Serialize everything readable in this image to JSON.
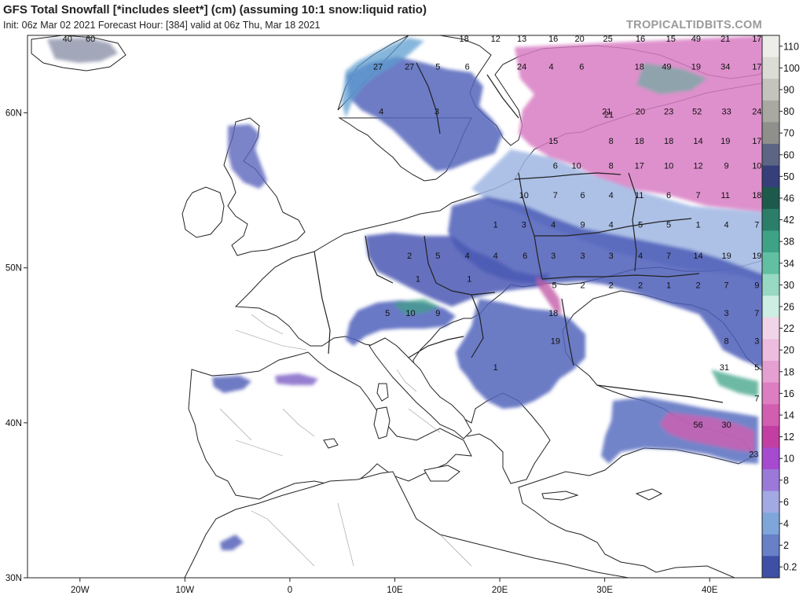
{
  "header": {
    "title": "GFS Total Snowfall [*includes sleet*] (cm) (assuming 10:1 snow:liquid ratio)",
    "subtitle": "Init: 06z Mar 02 2021   Forecast Hour: [384]   valid at 06z Thu, Mar 18 2021",
    "brand": "TROPICALTIDBITS.COM"
  },
  "axes": {
    "lon_ticks": [
      {
        "label": "20W",
        "lon": -20
      },
      {
        "label": "10W",
        "lon": -10
      },
      {
        "label": "0",
        "lon": 0
      },
      {
        "label": "10E",
        "lon": 10
      },
      {
        "label": "20E",
        "lon": 20
      },
      {
        "label": "30E",
        "lon": 30
      },
      {
        "label": "40E",
        "lon": 40
      }
    ],
    "lat_ticks": [
      {
        "label": "60N",
        "lat": 60
      },
      {
        "label": "50N",
        "lat": 50
      },
      {
        "label": "40N",
        "lat": 40
      },
      {
        "label": "30N",
        "lat": 30
      }
    ],
    "lon_range": [
      -25,
      45
    ],
    "lat_range": [
      30,
      65
    ]
  },
  "colorbar": {
    "units": "cm",
    "levels": [
      {
        "label": "110",
        "color": "#ededea"
      },
      {
        "label": "100",
        "color": "#dcdcd6"
      },
      {
        "label": "90",
        "color": "#c4c4bd"
      },
      {
        "label": "80",
        "color": "#a9a9a2"
      },
      {
        "label": "70",
        "color": "#8f8f8c"
      },
      {
        "label": "60",
        "color": "#5c6584"
      },
      {
        "label": "50",
        "color": "#353f7a"
      },
      {
        "label": "46",
        "color": "#1d5a4c"
      },
      {
        "label": "42",
        "color": "#2b7f6a"
      },
      {
        "label": "38",
        "color": "#3ea286"
      },
      {
        "label": "34",
        "color": "#61c0a2"
      },
      {
        "label": "30",
        "color": "#97d9c2"
      },
      {
        "label": "26",
        "color": "#cdeee2"
      },
      {
        "label": "22",
        "color": "#f2d4e9"
      },
      {
        "label": "20",
        "color": "#edbcdf"
      },
      {
        "label": "18",
        "color": "#e59fd1"
      },
      {
        "label": "16",
        "color": "#dc7ec1"
      },
      {
        "label": "14",
        "color": "#d15eb0"
      },
      {
        "label": "12",
        "color": "#c23ea2"
      },
      {
        "label": "10",
        "color": "#a64bd0"
      },
      {
        "label": "8",
        "color": "#9b79d8"
      },
      {
        "label": "6",
        "color": "#a3a9e3"
      },
      {
        "label": "4",
        "color": "#7fa6db"
      },
      {
        "label": "2",
        "color": "#6780c8"
      },
      {
        "label": "0.2",
        "color": "#3f4fa6"
      }
    ]
  },
  "map_labels": [
    {
      "t": "40",
      "lon": -21.2,
      "lat": 64.8
    },
    {
      "t": "60",
      "lon": -19,
      "lat": 64.8
    },
    {
      "t": "18",
      "lon": 16.6,
      "lat": 64.8
    },
    {
      "t": "12",
      "lon": 19.6,
      "lat": 64.8
    },
    {
      "t": "13",
      "lon": 22.1,
      "lat": 64.8
    },
    {
      "t": "16",
      "lon": 25.1,
      "lat": 64.8
    },
    {
      "t": "20",
      "lon": 27.6,
      "lat": 64.8
    },
    {
      "t": "25",
      "lon": 30.3,
      "lat": 64.8
    },
    {
      "t": "16",
      "lon": 33.4,
      "lat": 64.8
    },
    {
      "t": "15",
      "lon": 36.3,
      "lat": 64.8
    },
    {
      "t": "49",
      "lon": 38.7,
      "lat": 64.8
    },
    {
      "t": "21",
      "lon": 41.5,
      "lat": 64.8
    },
    {
      "t": "17",
      "lon": 44.5,
      "lat": 64.8
    },
    {
      "t": "27",
      "lon": 8.4,
      "lat": 63.0
    },
    {
      "t": "27",
      "lon": 11.4,
      "lat": 63.0
    },
    {
      "t": "5",
      "lon": 14.1,
      "lat": 63.0
    },
    {
      "t": "6",
      "lon": 16.9,
      "lat": 63.0
    },
    {
      "t": "24",
      "lon": 22.1,
      "lat": 63.0
    },
    {
      "t": "4",
      "lon": 24.9,
      "lat": 63.0
    },
    {
      "t": "6",
      "lon": 27.8,
      "lat": 63.0
    },
    {
      "t": "18",
      "lon": 33.3,
      "lat": 63.0
    },
    {
      "t": "49",
      "lon": 35.9,
      "lat": 63.0
    },
    {
      "t": "19",
      "lon": 38.7,
      "lat": 63.0
    },
    {
      "t": "34",
      "lon": 41.5,
      "lat": 63.0
    },
    {
      "t": "17",
      "lon": 44.5,
      "lat": 63.0
    },
    {
      "t": "4",
      "lon": 8.7,
      "lat": 60.1
    },
    {
      "t": "3",
      "lon": 14,
      "lat": 60.1
    },
    {
      "t": "21",
      "lon": 30.2,
      "lat": 60.1
    },
    {
      "t": "21",
      "lon": 30.4,
      "lat": 59.9
    },
    {
      "t": "20",
      "lon": 33.4,
      "lat": 60.1
    },
    {
      "t": "23",
      "lon": 36.1,
      "lat": 60.1
    },
    {
      "t": "52",
      "lon": 38.8,
      "lat": 60.1
    },
    {
      "t": "33",
      "lon": 41.6,
      "lat": 60.1
    },
    {
      "t": "24",
      "lon": 44.5,
      "lat": 60.1
    },
    {
      "t": "15",
      "lon": 25.1,
      "lat": 58.2
    },
    {
      "t": "8",
      "lon": 30.6,
      "lat": 58.2
    },
    {
      "t": "18",
      "lon": 33.3,
      "lat": 58.2
    },
    {
      "t": "18",
      "lon": 36.1,
      "lat": 58.2
    },
    {
      "t": "14",
      "lon": 38.9,
      "lat": 58.2
    },
    {
      "t": "19",
      "lon": 41.5,
      "lat": 58.2
    },
    {
      "t": "17",
      "lon": 44.5,
      "lat": 58.2
    },
    {
      "t": "6",
      "lon": 25.3,
      "lat": 56.6
    },
    {
      "t": "10",
      "lon": 27.3,
      "lat": 56.6
    },
    {
      "t": "8",
      "lon": 30.6,
      "lat": 56.6
    },
    {
      "t": "17",
      "lon": 33.3,
      "lat": 56.6
    },
    {
      "t": "10",
      "lon": 36.1,
      "lat": 56.6
    },
    {
      "t": "12",
      "lon": 38.9,
      "lat": 56.6
    },
    {
      "t": "9",
      "lon": 41.6,
      "lat": 56.6
    },
    {
      "t": "10",
      "lon": 44.5,
      "lat": 56.6
    },
    {
      "t": "10",
      "lon": 22.3,
      "lat": 54.7
    },
    {
      "t": "7",
      "lon": 25.3,
      "lat": 54.7
    },
    {
      "t": "6",
      "lon": 27.9,
      "lat": 54.7
    },
    {
      "t": "4",
      "lon": 30.6,
      "lat": 54.7
    },
    {
      "t": "11",
      "lon": 33.3,
      "lat": 54.7
    },
    {
      "t": "6",
      "lon": 36.1,
      "lat": 54.7
    },
    {
      "t": "7",
      "lon": 38.9,
      "lat": 54.7
    },
    {
      "t": "11",
      "lon": 41.5,
      "lat": 54.7
    },
    {
      "t": "18",
      "lon": 44.5,
      "lat": 54.7
    },
    {
      "t": "1",
      "lon": 19.6,
      "lat": 52.8
    },
    {
      "t": "3",
      "lon": 22.3,
      "lat": 52.8
    },
    {
      "t": "4",
      "lon": 25.1,
      "lat": 52.8
    },
    {
      "t": "9",
      "lon": 27.9,
      "lat": 52.8
    },
    {
      "t": "4",
      "lon": 30.6,
      "lat": 52.8
    },
    {
      "t": "5",
      "lon": 33.4,
      "lat": 52.8
    },
    {
      "t": "5",
      "lon": 36.1,
      "lat": 52.8
    },
    {
      "t": "1",
      "lon": 38.9,
      "lat": 52.8
    },
    {
      "t": "4",
      "lon": 41.6,
      "lat": 52.8
    },
    {
      "t": "7",
      "lon": 44.5,
      "lat": 52.8
    },
    {
      "t": "2",
      "lon": 11.4,
      "lat": 50.8
    },
    {
      "t": "5",
      "lon": 14.1,
      "lat": 50.8
    },
    {
      "t": "4",
      "lon": 16.9,
      "lat": 50.8
    },
    {
      "t": "4",
      "lon": 19.6,
      "lat": 50.8
    },
    {
      "t": "6",
      "lon": 22.4,
      "lat": 50.8
    },
    {
      "t": "3",
      "lon": 25.1,
      "lat": 50.8
    },
    {
      "t": "3",
      "lon": 27.9,
      "lat": 50.8
    },
    {
      "t": "3",
      "lon": 30.6,
      "lat": 50.8
    },
    {
      "t": "4",
      "lon": 33.4,
      "lat": 50.8
    },
    {
      "t": "7",
      "lon": 36.1,
      "lat": 50.8
    },
    {
      "t": "14",
      "lon": 38.9,
      "lat": 50.8
    },
    {
      "t": "19",
      "lon": 41.6,
      "lat": 50.8
    },
    {
      "t": "19",
      "lon": 44.5,
      "lat": 50.8
    },
    {
      "t": "1",
      "lon": 12.2,
      "lat": 49.3
    },
    {
      "t": "1",
      "lon": 17.1,
      "lat": 49.3
    },
    {
      "t": "5",
      "lon": 25.2,
      "lat": 48.9
    },
    {
      "t": "2",
      "lon": 27.9,
      "lat": 48.9
    },
    {
      "t": "2",
      "lon": 30.6,
      "lat": 48.9
    },
    {
      "t": "2",
      "lon": 33.4,
      "lat": 48.9
    },
    {
      "t": "1",
      "lon": 36.1,
      "lat": 48.9
    },
    {
      "t": "2",
      "lon": 38.9,
      "lat": 48.9
    },
    {
      "t": "7",
      "lon": 41.6,
      "lat": 48.9
    },
    {
      "t": "9",
      "lon": 44.5,
      "lat": 48.9
    },
    {
      "t": "5",
      "lon": 9.3,
      "lat": 47.1
    },
    {
      "t": "10",
      "lon": 11.5,
      "lat": 47.1
    },
    {
      "t": "9",
      "lon": 14.1,
      "lat": 47.1
    },
    {
      "t": "18",
      "lon": 25.1,
      "lat": 47.1
    },
    {
      "t": "3",
      "lon": 41.6,
      "lat": 47.1
    },
    {
      "t": "7",
      "lon": 44.5,
      "lat": 47.1
    },
    {
      "t": "19",
      "lon": 25.3,
      "lat": 45.3
    },
    {
      "t": "8",
      "lon": 41.6,
      "lat": 45.3
    },
    {
      "t": "3",
      "lon": 44.5,
      "lat": 45.3
    },
    {
      "t": "1",
      "lon": 19.6,
      "lat": 43.6
    },
    {
      "t": "31",
      "lon": 41.4,
      "lat": 43.6
    },
    {
      "t": "5",
      "lon": 44.5,
      "lat": 43.6
    },
    {
      "t": "7",
      "lon": 44.5,
      "lat": 41.6
    },
    {
      "t": "56",
      "lon": 38.9,
      "lat": 39.9
    },
    {
      "t": "30",
      "lon": 41.6,
      "lat": 39.9
    },
    {
      "t": "23",
      "lon": 44.2,
      "lat": 38.0
    }
  ]
}
